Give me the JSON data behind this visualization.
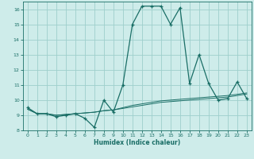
{
  "xlabel": "Humidex (Indice chaleur)",
  "bg_color": "#ceecea",
  "grid_color": "#9ecfcc",
  "line_color": "#1a6e66",
  "xlim": [
    -0.5,
    23.5
  ],
  "ylim": [
    8,
    16.5
  ],
  "yticks": [
    8,
    9,
    10,
    11,
    12,
    13,
    14,
    15,
    16
  ],
  "xticks": [
    0,
    1,
    2,
    3,
    4,
    5,
    6,
    7,
    8,
    9,
    10,
    11,
    12,
    13,
    14,
    15,
    16,
    17,
    18,
    19,
    20,
    21,
    22,
    23
  ],
  "series1_x": [
    0,
    1,
    2,
    3,
    4,
    5,
    6,
    7,
    8,
    9,
    10,
    11,
    12,
    13,
    14,
    15,
    16,
    17,
    18,
    19,
    20,
    21,
    22,
    23
  ],
  "series1_y": [
    9.5,
    9.1,
    9.1,
    8.9,
    9.0,
    9.1,
    8.8,
    8.2,
    10.0,
    9.2,
    11.0,
    15.0,
    16.2,
    16.2,
    16.2,
    15.0,
    16.1,
    11.1,
    13.0,
    11.1,
    10.0,
    10.1,
    11.2,
    10.1
  ],
  "series2_x": [
    0,
    1,
    2,
    3,
    4,
    5,
    6,
    7,
    8,
    9,
    10,
    11,
    12,
    13,
    14,
    15,
    16,
    17,
    18,
    19,
    20,
    21,
    22,
    23
  ],
  "series2_y": [
    9.4,
    9.1,
    9.1,
    9.0,
    9.05,
    9.1,
    9.15,
    9.2,
    9.3,
    9.35,
    9.45,
    9.55,
    9.65,
    9.75,
    9.85,
    9.9,
    9.95,
    10.0,
    10.05,
    10.1,
    10.15,
    10.2,
    10.3,
    10.4
  ],
  "series3_x": [
    0,
    1,
    2,
    3,
    4,
    5,
    6,
    7,
    8,
    9,
    10,
    11,
    12,
    13,
    14,
    15,
    16,
    17,
    18,
    19,
    20,
    21,
    22,
    23
  ],
  "series3_y": [
    9.4,
    9.1,
    9.1,
    9.0,
    9.05,
    9.1,
    9.15,
    9.2,
    9.3,
    9.35,
    9.5,
    9.65,
    9.75,
    9.85,
    9.95,
    10.0,
    10.05,
    10.1,
    10.15,
    10.2,
    10.25,
    10.3,
    10.38,
    10.47
  ]
}
